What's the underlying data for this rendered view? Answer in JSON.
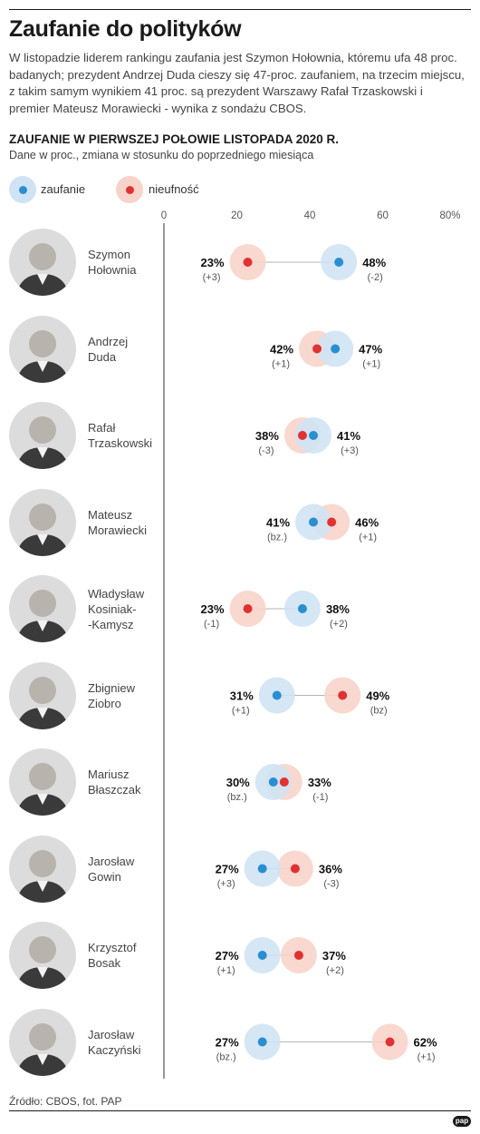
{
  "header": {
    "title": "Zaufanie do polityków",
    "lead": "W listopadzie liderem rankingu zaufania jest Szymon Hołownia, któremu ufa 48 proc. badanych; prezydent Andrzej Duda cieszy się 47-proc. zaufaniem, na trzecim miejscu, z takim samym wynikiem 41 proc. są prezydent Warszawy Rafał Trzaskowski i premier Mateusz Morawiecki - wynika z sondażu CBOS.",
    "subhead": "ZAUFANIE W PIERWSZEJ POŁOWIE LISTOPADA 2020 R.",
    "note": "Dane w proc., zmiana w stosunku do poprzedniego miesiąca"
  },
  "legend": {
    "trust": "zaufanie",
    "distrust": "nieufność"
  },
  "colors": {
    "trust_dot": "#2a8fd0",
    "trust_bubble": "#cfe3f4",
    "distrust_dot": "#e03232",
    "distrust_bubble": "#f8d3ca",
    "axis": "#333333",
    "connector": "#b5b5b5"
  },
  "footer": {
    "source": "Źródło: CBOS, fot. PAP",
    "logo": "pap"
  },
  "chart_data": {
    "type": "scatter",
    "subtype": "dumbbell",
    "title": "ZAUFANIE W PIERWSZEJ POŁOWIE LISTOPADA 2020 R.",
    "xlim": [
      0,
      80
    ],
    "ticks": [
      "0",
      "20",
      "40",
      "60",
      "80%"
    ],
    "tick_values": [
      0,
      20,
      40,
      60,
      80
    ],
    "series_names": [
      "zaufanie",
      "nieufność"
    ],
    "rows": [
      {
        "name": [
          "Szymon",
          "Hołownia"
        ],
        "trust": 48,
        "trust_label": "48%",
        "trust_change": "(-2)",
        "distrust": 23,
        "distrust_label": "23%",
        "distrust_change": "(+3)"
      },
      {
        "name": [
          "Andrzej",
          "Duda"
        ],
        "trust": 47,
        "trust_label": "47%",
        "trust_change": "(+1)",
        "distrust": 42,
        "distrust_label": "42%",
        "distrust_change": "(+1)"
      },
      {
        "name": [
          "Rafał",
          "Trzaskowski"
        ],
        "trust": 41,
        "trust_label": "41%",
        "trust_change": "(+3)",
        "distrust": 38,
        "distrust_label": "38%",
        "distrust_change": "(-3)"
      },
      {
        "name": [
          "Mateusz",
          "Morawiecki"
        ],
        "trust": 41,
        "trust_label": "41%",
        "trust_change": "(bz.)",
        "distrust": 46,
        "distrust_label": "46%",
        "distrust_change": "(+1)"
      },
      {
        "name": [
          "Władysław",
          "Kosiniak-",
          "-Kamysz"
        ],
        "trust": 38,
        "trust_label": "38%",
        "trust_change": "(+2)",
        "distrust": 23,
        "distrust_label": "23%",
        "distrust_change": "(-1)"
      },
      {
        "name": [
          "Zbigniew",
          "Ziobro"
        ],
        "trust": 31,
        "trust_label": "31%",
        "trust_change": "(+1)",
        "distrust": 49,
        "distrust_label": "49%",
        "distrust_change": "(bz)"
      },
      {
        "name": [
          "Mariusz",
          "Błaszczak"
        ],
        "trust": 30,
        "trust_label": "30%",
        "trust_change": "(bz.)",
        "distrust": 33,
        "distrust_label": "33%",
        "distrust_change": "(-1)"
      },
      {
        "name": [
          "Jarosław",
          "Gowin"
        ],
        "trust": 27,
        "trust_label": "27%",
        "trust_change": "(+3)",
        "distrust": 36,
        "distrust_label": "36%",
        "distrust_change": "(-3)"
      },
      {
        "name": [
          "Krzysztof",
          "Bosak"
        ],
        "trust": 27,
        "trust_label": "27%",
        "trust_change": "(+1)",
        "distrust": 37,
        "distrust_label": "37%",
        "distrust_change": "(+2)"
      },
      {
        "name": [
          "Jarosław",
          "Kaczyński"
        ],
        "trust": 27,
        "trust_label": "27%",
        "trust_change": "(bz.)",
        "distrust": 62,
        "distrust_label": "62%",
        "distrust_change": "(+1)"
      }
    ]
  }
}
